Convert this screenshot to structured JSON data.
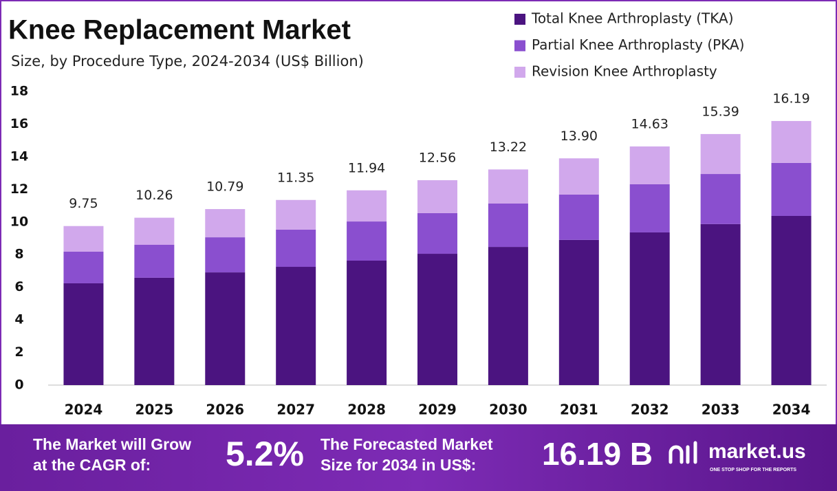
{
  "chart_data": {
    "type": "stacked_bar",
    "title": "Knee Replacement Market",
    "subtitle": "Size, by Procedure Type, 2024-2034 (US$ Billion)",
    "categories": [
      "2024",
      "2025",
      "2026",
      "2027",
      "2028",
      "2029",
      "2030",
      "2031",
      "2032",
      "2033",
      "2034"
    ],
    "series": [
      {
        "name": "Total Knee Arthroplasty (TKA)",
        "color": "#4b1480",
        "values": [
          6.24,
          6.58,
          6.91,
          7.25,
          7.63,
          8.05,
          8.47,
          8.9,
          9.36,
          9.87,
          10.37
        ]
      },
      {
        "name": "Partial Knee Arthroplasty (PKA)",
        "color": "#8a4fcf",
        "values": [
          1.94,
          2.02,
          2.15,
          2.28,
          2.4,
          2.49,
          2.66,
          2.78,
          2.95,
          3.07,
          3.25
        ]
      },
      {
        "name": "Revision Knee Arthroplasty",
        "color": "#d1a8ec",
        "values": [
          1.57,
          1.66,
          1.73,
          1.82,
          1.91,
          2.02,
          2.09,
          2.22,
          2.32,
          2.45,
          2.57
        ]
      }
    ],
    "totals": [
      9.75,
      10.26,
      10.79,
      11.35,
      11.94,
      12.56,
      13.22,
      13.9,
      14.63,
      15.39,
      16.19
    ],
    "total_labels": [
      "9.75",
      "10.26",
      "10.79",
      "11.35",
      "11.94",
      "12.56",
      "13.22",
      "13.90",
      "14.63",
      "15.39",
      "16.19"
    ],
    "ylim": [
      0,
      18
    ],
    "yticks": [
      0,
      2,
      4,
      6,
      8,
      10,
      12,
      14,
      16,
      18
    ],
    "grid": false,
    "legend": "top-right"
  },
  "footer": {
    "cagr_text": [
      "The Market will Grow",
      "at the CAGR of:"
    ],
    "cagr_value": "5.2%",
    "forecast_text": [
      "The Forecasted Market",
      "Size for 2034 in US$:"
    ],
    "forecast_value": "16.19 B",
    "brand": "market.us",
    "tagline": "ONE STOP SHOP FOR THE REPORTS"
  }
}
